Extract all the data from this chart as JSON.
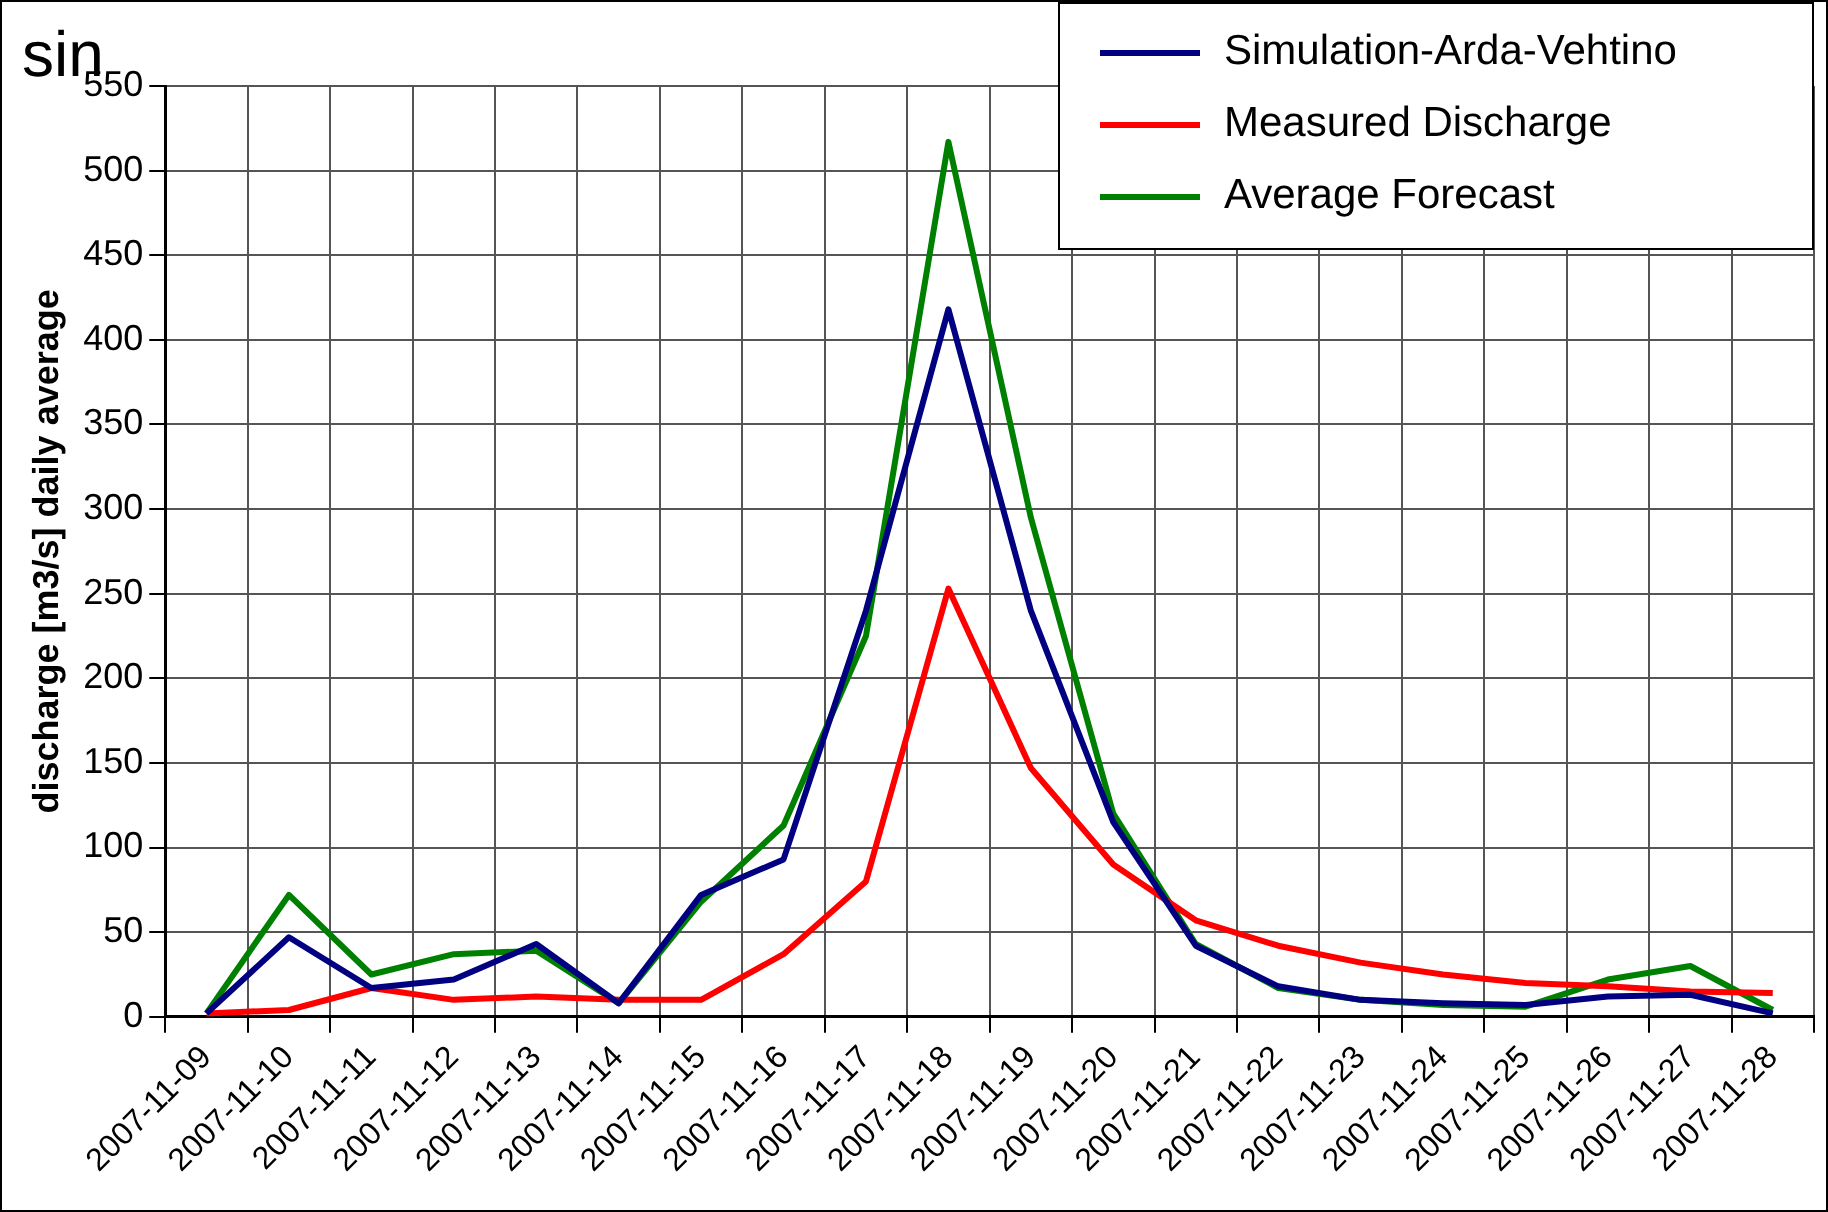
{
  "chart_data": {
    "type": "line",
    "title": "sin",
    "ylabel": "discharge [m3/s] daily average",
    "categories": [
      "2007-11-09",
      "2007-11-10",
      "2007-11-11",
      "2007-11-12",
      "2007-11-13",
      "2007-11-14",
      "2007-11-15",
      "2007-11-16",
      "2007-11-17",
      "2007-11-18",
      "2007-11-19",
      "2007-11-20",
      "2007-11-21",
      "2007-11-22",
      "2007-11-23",
      "2007-11-24",
      "2007-11-25",
      "2007-11-26",
      "2007-11-27",
      "2007-11-28"
    ],
    "series": [
      {
        "name": "Simulation-Arda-Vehtino",
        "color": "#000080",
        "values": [
          2,
          47,
          17,
          22,
          43,
          8,
          72,
          93,
          240,
          418,
          240,
          115,
          42,
          18,
          10,
          8,
          7,
          12,
          13,
          2
        ]
      },
      {
        "name": "Measured Discharge",
        "color": "#ff0000",
        "values": [
          2,
          4,
          17,
          10,
          12,
          10,
          10,
          37,
          80,
          253,
          147,
          90,
          57,
          42,
          32,
          25,
          20,
          18,
          15,
          14
        ]
      },
      {
        "name": "Average Forecast",
        "color": "#008000",
        "values": [
          2,
          72,
          25,
          37,
          39,
          8,
          68,
          113,
          225,
          517,
          295,
          120,
          43,
          17,
          10,
          7,
          6,
          22,
          30,
          4
        ]
      }
    ],
    "ylim": [
      0,
      550
    ],
    "yticks": [
      0,
      50,
      100,
      150,
      200,
      250,
      300,
      350,
      400,
      450,
      500,
      550
    ],
    "grid": true,
    "legend": "top right",
    "marker": "none",
    "line_style": "solid"
  }
}
